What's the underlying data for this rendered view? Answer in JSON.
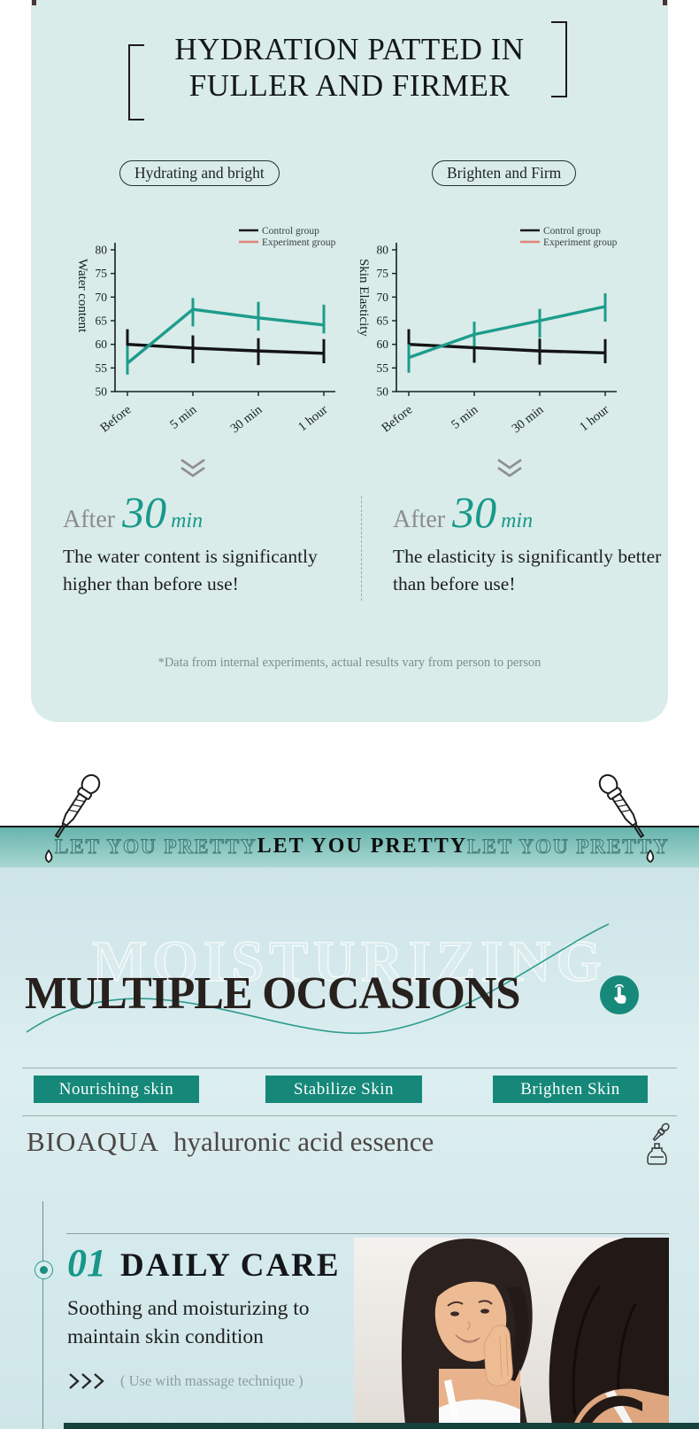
{
  "colors": {
    "accent_teal": "#17897b",
    "chart_experiment_line": "#1d9c8c",
    "legend_experiment_swatch": "#e0837b",
    "legend_control_swatch": "#1a1a1a",
    "card_bg": "#d9ece9",
    "band_gradient_top": "#66b5ad",
    "band_gradient_bottom": "#a9d8d2",
    "lower_bg": "#d3e8eb",
    "dark_strip": "#16423d"
  },
  "top_card": {
    "title_line1": "HYDRATION PATTED IN",
    "title_line2": "FULLER AND FIRMER",
    "pills": [
      "Hydrating and bright",
      "Brighten and Firm"
    ],
    "results": [
      {
        "prefix": "After",
        "big": "30",
        "unit": "min",
        "text": "The water content is significantly higher than before use!"
      },
      {
        "prefix": "After",
        "big": "30",
        "unit": "min",
        "text": "The elasticity is significantly better than before use!"
      }
    ],
    "footnote": "*Data from internal experiments, actual results vary from person to person"
  },
  "chart_data": [
    {
      "type": "line",
      "ylabel": "Water content",
      "x": [
        "Before",
        "5 min",
        "30 min",
        "1 hour"
      ],
      "ylim": [
        50,
        80
      ],
      "yticks": [
        50,
        55,
        60,
        65,
        70,
        75,
        80
      ],
      "legend": [
        "Control group",
        "Experiment group"
      ],
      "legend_colors": [
        "#1a1a1a",
        "#e0837b"
      ],
      "legend_position": "top-right",
      "grid": false,
      "series": [
        {
          "name": "Control group",
          "color": "#141414",
          "values": [
            60,
            59.2,
            58.6,
            58.1
          ],
          "err_low": [
            3.0,
            3.2,
            3.0,
            2.1
          ],
          "err_high": [
            3.2,
            2.7,
            2.7,
            3.0
          ]
        },
        {
          "name": "Experiment group",
          "color": "#1d9c8c",
          "values": [
            56,
            67.4,
            65.6,
            64.1
          ],
          "err_low": [
            2.4,
            3.6,
            2.7,
            1.8
          ],
          "err_high": [
            3.7,
            2.4,
            3.4,
            4.3
          ]
        }
      ]
    },
    {
      "type": "line",
      "ylabel": "Skin Elasticity",
      "x": [
        "Before",
        "5 min",
        "30 min",
        "1 hour"
      ],
      "ylim": [
        50,
        80
      ],
      "yticks": [
        50,
        55,
        60,
        65,
        70,
        75,
        80
      ],
      "legend": [
        "Control group",
        "Experiment group"
      ],
      "legend_colors": [
        "#1a1a1a",
        "#e0837b"
      ],
      "legend_position": "top-right",
      "grid": false,
      "series": [
        {
          "name": "Control group",
          "color": "#141414",
          "values": [
            60,
            59.3,
            58.6,
            58.2
          ],
          "err_low": [
            3.0,
            3.2,
            2.9,
            2.2
          ],
          "err_high": [
            3.2,
            2.6,
            2.6,
            2.9
          ]
        },
        {
          "name": "Experiment group",
          "color": "#1d9c8c",
          "values": [
            57.2,
            62.1,
            65.0,
            68.0
          ],
          "err_low": [
            3.2,
            2.5,
            3.6,
            3.2
          ],
          "err_high": [
            2.8,
            2.7,
            2.5,
            2.8
          ]
        }
      ]
    }
  ],
  "banner": {
    "left": "LET YOU PRETTY",
    "center": "LET YOU PRETTY",
    "right": "LET YOU PRETTY"
  },
  "occasions": {
    "watermark": "MOISTURIZING",
    "title": "MULTIPLE OCCASIONS",
    "tags": [
      "Nourishing skin",
      "Stabilize Skin",
      "Brighten Skin"
    ],
    "brand": "BIOAQUA",
    "product": "hyaluronic acid essence"
  },
  "care": {
    "number": "01",
    "title": "DAILY CARE",
    "description": "Soothing and moisturizing to maintain skin condition",
    "note": "( Use with massage technique )"
  }
}
